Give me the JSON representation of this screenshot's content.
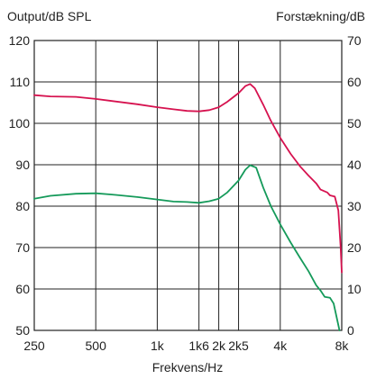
{
  "chart_data": {
    "type": "line",
    "left_axis_title": "Output/dB SPL",
    "right_axis_title": "Forstækning/dB",
    "xlabel": "Frekvens/Hz",
    "x_scale": "log",
    "xlim": [
      250,
      8000
    ],
    "ylim_left": [
      50,
      120
    ],
    "ylim_right": [
      0,
      70
    ],
    "grid": true,
    "x_ticks": [
      {
        "value": 250,
        "label": "250"
      },
      {
        "value": 500,
        "label": "500"
      },
      {
        "value": 1000,
        "label": "1k"
      },
      {
        "value": 1600,
        "label": "1k6"
      },
      {
        "value": 2000,
        "label": "2k"
      },
      {
        "value": 2500,
        "label": "2k5"
      },
      {
        "value": 4000,
        "label": "4k"
      },
      {
        "value": 8000,
        "label": "8k"
      }
    ],
    "y_ticks_left": [
      "50",
      "60",
      "70",
      "80",
      "90",
      "100",
      "110",
      "120"
    ],
    "y_ticks_right": [
      "0",
      "10",
      "20",
      "30",
      "40",
      "50",
      "60",
      "70"
    ],
    "series": [
      {
        "color": "#d6124f",
        "axis": "left",
        "points": [
          [
            250,
            106.8
          ],
          [
            300,
            106.5
          ],
          [
            400,
            106.4
          ],
          [
            500,
            105.9
          ],
          [
            600,
            105.4
          ],
          [
            800,
            104.6
          ],
          [
            1000,
            103.9
          ],
          [
            1200,
            103.4
          ],
          [
            1400,
            103.0
          ],
          [
            1600,
            102.9
          ],
          [
            1800,
            103.2
          ],
          [
            2000,
            103.9
          ],
          [
            2200,
            105.2
          ],
          [
            2500,
            107.3
          ],
          [
            2700,
            109.0
          ],
          [
            2850,
            109.5
          ],
          [
            3000,
            108.5
          ],
          [
            3300,
            104.5
          ],
          [
            3600,
            100.6
          ],
          [
            4000,
            96.5
          ],
          [
            4500,
            92.6
          ],
          [
            5000,
            89.6
          ],
          [
            5500,
            87.4
          ],
          [
            6000,
            85.5
          ],
          [
            6300,
            84.0
          ],
          [
            6800,
            83.3
          ],
          [
            7000,
            82.6
          ],
          [
            7400,
            82.3
          ],
          [
            7700,
            79.0
          ],
          [
            7900,
            70.0
          ],
          [
            8000,
            64.0
          ]
        ]
      },
      {
        "color": "#159a5a",
        "axis": "left",
        "points": [
          [
            250,
            81.8
          ],
          [
            300,
            82.5
          ],
          [
            400,
            83.0
          ],
          [
            500,
            83.1
          ],
          [
            600,
            82.8
          ],
          [
            800,
            82.2
          ],
          [
            1000,
            81.6
          ],
          [
            1200,
            81.1
          ],
          [
            1400,
            81.0
          ],
          [
            1600,
            80.8
          ],
          [
            1800,
            81.2
          ],
          [
            2000,
            81.8
          ],
          [
            2200,
            83.3
          ],
          [
            2500,
            86.2
          ],
          [
            2700,
            88.8
          ],
          [
            2850,
            89.9
          ],
          [
            3050,
            89.3
          ],
          [
            3300,
            84.5
          ],
          [
            3600,
            80.0
          ],
          [
            4000,
            75.6
          ],
          [
            4500,
            71.2
          ],
          [
            5000,
            67.5
          ],
          [
            5500,
            64.3
          ],
          [
            6000,
            60.9
          ],
          [
            6300,
            59.6
          ],
          [
            6600,
            58.1
          ],
          [
            7000,
            57.9
          ],
          [
            7300,
            56.5
          ],
          [
            7600,
            52.5
          ],
          [
            7800,
            50.0
          ]
        ]
      }
    ]
  }
}
